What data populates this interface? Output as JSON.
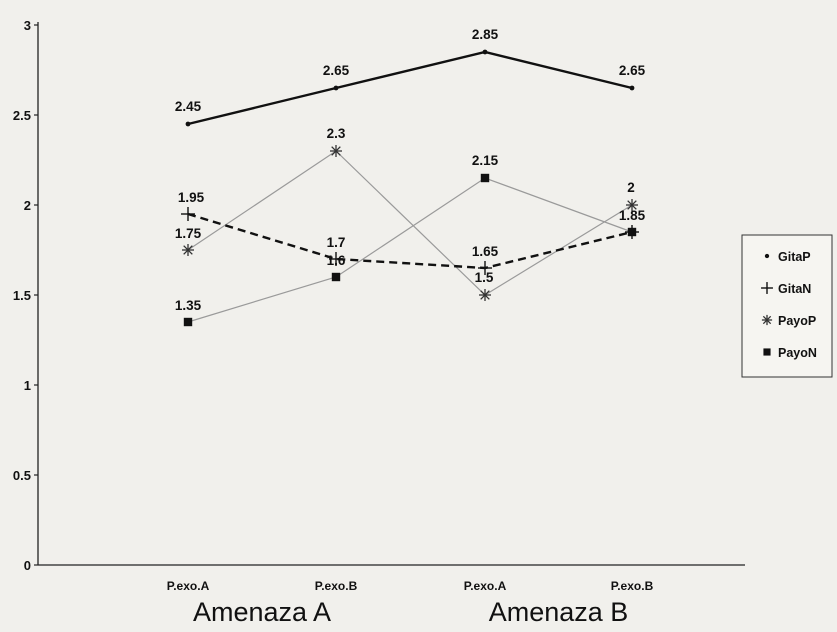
{
  "chart_data": {
    "type": "line",
    "title": "",
    "xlabel": "",
    "ylabel": "",
    "ylim": [
      0,
      3
    ],
    "yticks": [
      "0",
      "0.5",
      "1",
      "1.5",
      "2",
      "2.5",
      "3"
    ],
    "categories": [
      "P.exo.A",
      "P.exo.B",
      "P.exo.A",
      "P.exo.B"
    ],
    "groups": [
      {
        "label": "Amenaza A",
        "span": [
          0,
          1
        ]
      },
      {
        "label": "Amenaza B",
        "span": [
          2,
          3
        ]
      }
    ],
    "grid": false,
    "legend_position": "right",
    "series": [
      {
        "name": "GitaP",
        "values": [
          2.45,
          2.65,
          2.85,
          2.65
        ],
        "labels": [
          "2.45",
          "2.65",
          "2.85",
          "2.65"
        ],
        "line": "solid-thick",
        "marker": "dot",
        "color": "#111111"
      },
      {
        "name": "GitaN",
        "values": [
          1.95,
          1.7,
          1.65,
          1.85
        ],
        "labels": [
          "1.95",
          "1.7",
          "1.65",
          "1.85"
        ],
        "line": "dashed-thick",
        "marker": "plus",
        "color": "#111111"
      },
      {
        "name": "PayoP",
        "values": [
          1.75,
          2.3,
          1.5,
          2.0
        ],
        "labels": [
          "1.75",
          "2.3",
          "1.5",
          "2"
        ],
        "line": "thin",
        "marker": "star",
        "color": "#9a9a9a"
      },
      {
        "name": "PayoN",
        "values": [
          1.35,
          1.6,
          2.15,
          1.85
        ],
        "labels": [
          "1.35",
          "1.6",
          "2.15",
          ""
        ],
        "line": "thin",
        "marker": "square",
        "color": "#9a9a9a"
      }
    ]
  }
}
